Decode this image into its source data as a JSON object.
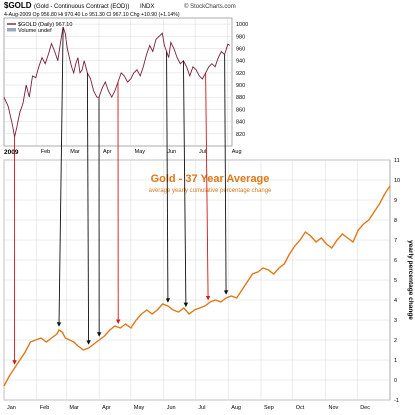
{
  "colors": {
    "top_line": "#7a1f3a",
    "bottom_line": "#e07818",
    "arrow_black": "#111111",
    "arrow_red": "#d01818",
    "grid": "#d8d8d8",
    "title_orange": "#e07818"
  },
  "top_panel": {
    "symbol": "$GOLD",
    "contract": "(Gold - Continuous Contract (EOD))",
    "exchange": "INDX",
    "source": "© StockCharts.com",
    "ohlc_line": "4-Aug-2009  Op 956.80  Hi 970.40  Lo 951.30  Cl 967.10  Chg +10.90 (+1.14%)",
    "legend_series": "$GOLD (Daily) 967.10",
    "legend_volume": "Volume undef",
    "year_label": "2009"
  },
  "bottom_panel": {
    "title": "Gold - 37 Year Average",
    "subtitle": "average yearly cumulative percentage change",
    "ylabel": "yearly percentage change"
  },
  "chart_data": [
    {
      "type": "line",
      "title": "$GOLD (Daily) 967.10",
      "x_ticks": [
        "Feb",
        "Mar",
        "Apr",
        "May",
        "Jun",
        "Jul",
        "Aug"
      ],
      "x_ticks_days": [
        31,
        59,
        90,
        120,
        151,
        181,
        212
      ],
      "xlim_days": [
        0,
        216
      ],
      "ylim": [
        800,
        1010
      ],
      "y_ticks": [
        820,
        840,
        860,
        880,
        900,
        920,
        940,
        960,
        980,
        1000
      ],
      "axis_side": "right",
      "x_days": [
        0,
        4,
        8,
        10,
        12,
        15,
        18,
        21,
        24,
        27,
        30,
        33,
        36,
        39,
        42,
        45,
        48,
        51,
        54,
        56,
        58,
        60,
        62,
        64,
        66,
        68,
        70,
        72,
        74,
        76,
        79,
        82,
        85,
        88,
        90,
        93,
        96,
        99,
        102,
        105,
        108,
        111,
        114,
        117,
        120,
        123,
        126,
        129,
        132,
        135,
        138,
        141,
        144,
        147,
        150,
        152,
        154,
        156,
        158,
        161,
        164,
        167,
        170,
        173,
        176,
        179,
        182,
        185,
        188,
        191,
        194,
        197,
        200,
        203,
        206,
        209,
        212,
        214
      ],
      "values": [
        880,
        865,
        835,
        815,
        830,
        855,
        870,
        900,
        880,
        915,
        912,
        930,
        945,
        935,
        950,
        968,
        955,
        940,
        975,
        995,
        985,
        960,
        945,
        930,
        920,
        935,
        945,
        920,
        925,
        940,
        920,
        910,
        890,
        880,
        880,
        895,
        905,
        890,
        880,
        890,
        905,
        920,
        915,
        905,
        910,
        920,
        925,
        915,
        930,
        950,
        965,
        955,
        975,
        980,
        985,
        965,
        955,
        945,
        970,
        960,
        945,
        935,
        940,
        930,
        915,
        930,
        925,
        915,
        910,
        920,
        930,
        935,
        930,
        945,
        955,
        950,
        967,
        965
      ]
    },
    {
      "type": "line",
      "title": "Gold - 37 Year Average",
      "subtitle": "average yearly cumulative percentage change",
      "ylabel": "yearly percentage change",
      "x_ticks": [
        "Jan",
        "Feb",
        "Mar",
        "Apr",
        "May",
        "Jun",
        "Jul",
        "Aug",
        "Sep",
        "Oct",
        "Nov",
        "Dec"
      ],
      "x_ticks_days": [
        0,
        31,
        59,
        90,
        120,
        151,
        181,
        212,
        243,
        273,
        304,
        334
      ],
      "xlim_days": [
        0,
        365
      ],
      "ylim": [
        -1,
        11
      ],
      "y_ticks": [
        -1,
        0,
        1,
        2,
        3,
        4,
        5,
        6,
        7,
        8,
        9,
        10,
        11
      ],
      "axis_side": "right",
      "x_days": [
        0,
        5,
        10,
        15,
        20,
        25,
        30,
        35,
        40,
        45,
        50,
        52,
        55,
        58,
        62,
        66,
        70,
        75,
        80,
        85,
        90,
        95,
        100,
        105,
        110,
        115,
        120,
        125,
        130,
        135,
        140,
        145,
        150,
        155,
        160,
        165,
        170,
        175,
        180,
        185,
        190,
        195,
        200,
        205,
        210,
        215,
        220,
        225,
        230,
        235,
        240,
        245,
        250,
        255,
        260,
        265,
        270,
        275,
        280,
        285,
        290,
        295,
        300,
        305,
        310,
        315,
        320,
        325,
        330,
        335,
        340,
        345,
        350,
        355,
        360,
        365
      ],
      "values": [
        -0.3,
        0.2,
        0.6,
        1.0,
        1.4,
        1.9,
        2.0,
        2.1,
        1.9,
        2.1,
        2.3,
        2.5,
        2.4,
        2.1,
        2.0,
        1.9,
        1.7,
        1.5,
        1.6,
        1.8,
        2.0,
        2.2,
        2.5,
        2.7,
        2.6,
        2.8,
        2.6,
        3.0,
        3.3,
        3.5,
        3.3,
        3.5,
        3.8,
        3.7,
        3.5,
        3.4,
        3.6,
        3.3,
        3.5,
        3.6,
        3.7,
        3.9,
        4.0,
        3.9,
        4.1,
        4.2,
        4.1,
        4.5,
        4.9,
        5.3,
        5.4,
        5.6,
        5.5,
        5.3,
        5.6,
        5.8,
        6.3,
        6.7,
        7.0,
        7.4,
        7.2,
        6.9,
        7.1,
        6.8,
        6.6,
        7.0,
        7.3,
        7.1,
        6.9,
        7.5,
        7.8,
        8.0,
        8.4,
        8.8,
        9.3,
        9.7
      ]
    }
  ],
  "arrows": [
    {
      "color": "red",
      "from": {
        "panel": "top",
        "x_days": 10
      },
      "to": {
        "panel": "bottom",
        "x_days": 10
      }
    },
    {
      "color": "black",
      "from": {
        "panel": "top",
        "x_days": 56
      },
      "to": {
        "panel": "bottom",
        "x_days": 52
      }
    },
    {
      "color": "black",
      "from": {
        "panel": "top",
        "x_days": 79
      },
      "to": {
        "panel": "bottom",
        "x_days": 80
      }
    },
    {
      "color": "black",
      "from": {
        "panel": "top",
        "x_days": 90
      },
      "to": {
        "panel": "bottom",
        "x_days": 90
      }
    },
    {
      "color": "red",
      "from": {
        "panel": "top",
        "x_days": 108
      },
      "to": {
        "panel": "bottom",
        "x_days": 108
      }
    },
    {
      "color": "black",
      "from": {
        "panel": "top",
        "x_days": 154
      },
      "to": {
        "panel": "bottom",
        "x_days": 155
      }
    },
    {
      "color": "black",
      "from": {
        "panel": "top",
        "x_days": 170
      },
      "to": {
        "panel": "bottom",
        "x_days": 172
      }
    },
    {
      "color": "red",
      "from": {
        "panel": "top",
        "x_days": 191
      },
      "to": {
        "panel": "bottom",
        "x_days": 193
      }
    },
    {
      "color": "black",
      "from": {
        "panel": "top",
        "x_days": 209
      },
      "to": {
        "panel": "bottom",
        "x_days": 210
      }
    }
  ]
}
